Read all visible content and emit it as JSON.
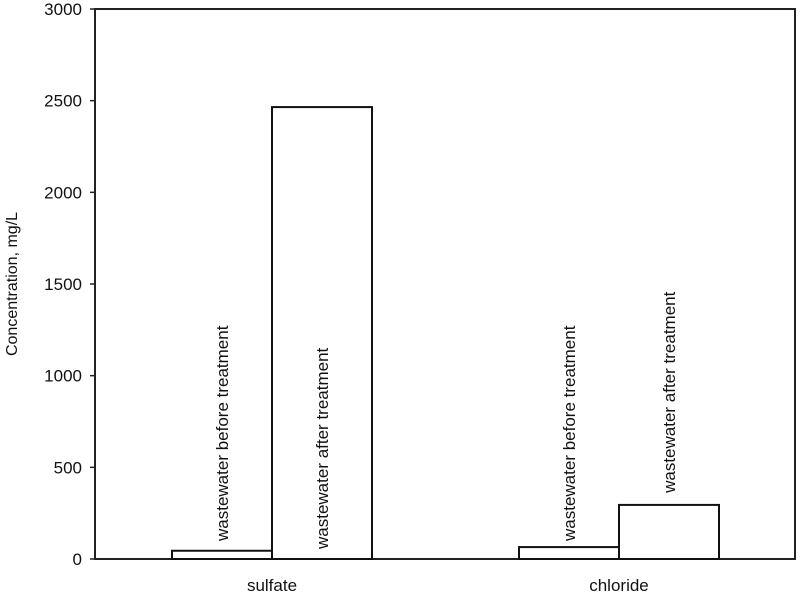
{
  "chart_data": {
    "type": "bar",
    "title": "",
    "xlabel": "",
    "ylabel": "Concentration, mg/L",
    "ylim": [
      0,
      3000
    ],
    "yticks": [
      0,
      500,
      1000,
      1500,
      2000,
      2500,
      3000
    ],
    "grid": false,
    "legend": "none (series labelled by rotated text above each bar)",
    "categories": [
      "sulfate",
      "chloride"
    ],
    "series": [
      {
        "name": "wastewater before treatment",
        "values": [
          45,
          65
        ]
      },
      {
        "name": "wastewater after treatment",
        "values": [
          2465,
          295
        ]
      }
    ],
    "bar_fill": "#ffffff",
    "bar_stroke": "#111111"
  }
}
